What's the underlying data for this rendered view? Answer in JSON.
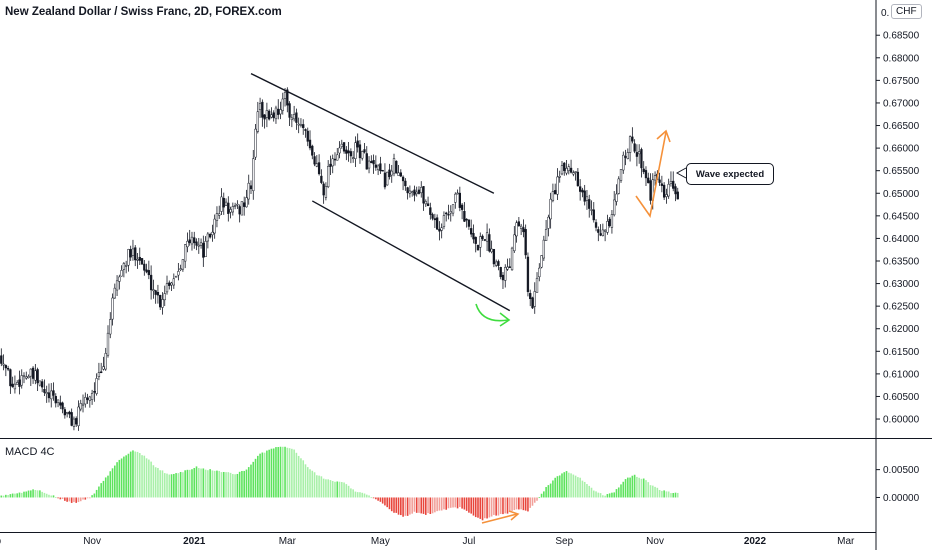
{
  "header": {
    "title": "New Zealand Dollar / Swiss Franc, 2D, FOREX.com",
    "currency": "CHF",
    "top_tick_partial": "0."
  },
  "indicator": {
    "title": "MACD 4C"
  },
  "annotation": {
    "text": "Wave expected"
  },
  "colors": {
    "candle": "#131722",
    "macd_up": "#5de35d",
    "macd_down": "#e8453c",
    "channel": "#131722",
    "green_arrow": "#3fdc3f",
    "orange_arrow": "#f5913a",
    "axis_text": "#131722"
  },
  "chart_data": [
    {
      "type": "candlestick",
      "title": "New Zealand Dollar / Swiss Franc, 2D, FOREX.com",
      "ylim": [
        0.5958,
        0.6928
      ],
      "y_ticks": [
        "0.60000",
        "0.60500",
        "0.61000",
        "0.61500",
        "0.62000",
        "0.62500",
        "0.63000",
        "0.63500",
        "0.64000",
        "0.64500",
        "0.65000",
        "0.65500",
        "0.66000",
        "0.66500",
        "0.67000",
        "0.67500",
        "0.68000",
        "0.68500"
      ],
      "y_tick_values": [
        0.6,
        0.605,
        0.61,
        0.615,
        0.62,
        0.625,
        0.63,
        0.635,
        0.64,
        0.645,
        0.65,
        0.655,
        0.66,
        0.665,
        0.67,
        0.675,
        0.68,
        0.685
      ],
      "x_ticks": [
        "Sep",
        "Nov",
        "2021",
        "Mar",
        "May",
        "Jul",
        "Sep",
        "Nov",
        "2022",
        "Mar"
      ],
      "x_tick_index": [
        -4,
        40,
        85,
        126,
        167,
        206,
        248,
        288,
        332,
        372
      ],
      "n_bars": 300,
      "close_anchors": [
        [
          0,
          0.614
        ],
        [
          5,
          0.607
        ],
        [
          10,
          0.61
        ],
        [
          15,
          0.609
        ],
        [
          20,
          0.605
        ],
        [
          25,
          0.604
        ],
        [
          30,
          0.6
        ],
        [
          33,
          0.5995
        ],
        [
          36,
          0.604
        ],
        [
          40,
          0.606
        ],
        [
          45,
          0.611
        ],
        [
          48,
          0.623
        ],
        [
          52,
          0.632
        ],
        [
          56,
          0.636
        ],
        [
          60,
          0.637
        ],
        [
          63,
          0.633
        ],
        [
          67,
          0.629
        ],
        [
          70,
          0.626
        ],
        [
          73,
          0.63
        ],
        [
          77,
          0.632
        ],
        [
          81,
          0.638
        ],
        [
          85,
          0.64
        ],
        [
          89,
          0.637
        ],
        [
          93,
          0.642
        ],
        [
          97,
          0.648
        ],
        [
          101,
          0.646
        ],
        [
          104,
          0.646
        ],
        [
          107,
          0.648
        ],
        [
          110,
          0.652
        ],
        [
          113,
          0.669
        ],
        [
          117,
          0.667
        ],
        [
          121,
          0.668
        ],
        [
          125,
          0.671
        ],
        [
          129,
          0.666
        ],
        [
          133,
          0.664
        ],
        [
          136,
          0.659
        ],
        [
          139,
          0.656
        ],
        [
          142,
          0.651
        ],
        [
          145,
          0.657
        ],
        [
          149,
          0.66
        ],
        [
          153,
          0.658
        ],
        [
          157,
          0.66
        ],
        [
          161,
          0.657
        ],
        [
          165,
          0.655
        ],
        [
          169,
          0.653
        ],
        [
          173,
          0.656
        ],
        [
          177,
          0.652
        ],
        [
          181,
          0.651
        ],
        [
          185,
          0.65
        ],
        [
          189,
          0.646
        ],
        [
          193,
          0.642
        ],
        [
          197,
          0.646
        ],
        [
          201,
          0.65
        ],
        [
          205,
          0.643
        ],
        [
          209,
          0.638
        ],
        [
          213,
          0.641
        ],
        [
          217,
          0.636
        ],
        [
          221,
          0.632
        ],
        [
          224,
          0.635
        ],
        [
          227,
          0.645
        ],
        [
          230,
          0.643
        ],
        [
          232,
          0.628
        ],
        [
          234,
          0.6245
        ],
        [
          236,
          0.632
        ],
        [
          239,
          0.639
        ],
        [
          242,
          0.648
        ],
        [
          245,
          0.653
        ],
        [
          249,
          0.656
        ],
        [
          253,
          0.655
        ],
        [
          256,
          0.65
        ],
        [
          259,
          0.647
        ],
        [
          262,
          0.644
        ],
        [
          265,
          0.641
        ],
        [
          268,
          0.643
        ],
        [
          271,
          0.649
        ],
        [
          274,
          0.659
        ],
        [
          277,
          0.661
        ],
        [
          280,
          0.659
        ],
        [
          283,
          0.656
        ],
        [
          286,
          0.65
        ],
        [
          289,
          0.654
        ],
        [
          292,
          0.648
        ],
        [
          295,
          0.652
        ],
        [
          298,
          0.649
        ]
      ],
      "channel_upper": [
        [
          0.6765,
          0.65
        ]
      ],
      "channel_lower": [
        [
          0.6483,
          0.624
        ]
      ],
      "annotation": "Wave expected"
    },
    {
      "type": "bar",
      "title": "MACD 4C",
      "ylim": [
        -0.0062,
        0.0105
      ],
      "y_ticks": [
        "0.00500",
        "0.00000"
      ],
      "y_tick_values": [
        0.005,
        0.0
      ],
      "n_bars": 300,
      "value_anchors": [
        [
          0,
          0.0002
        ],
        [
          8,
          0.0008
        ],
        [
          14,
          0.0015
        ],
        [
          20,
          0.0008
        ],
        [
          26,
          -0.0002
        ],
        [
          31,
          -0.001
        ],
        [
          35,
          -0.0007
        ],
        [
          40,
          0.0003
        ],
        [
          46,
          0.0035
        ],
        [
          52,
          0.0068
        ],
        [
          58,
          0.0085
        ],
        [
          63,
          0.0075
        ],
        [
          68,
          0.0055
        ],
        [
          74,
          0.004
        ],
        [
          80,
          0.0046
        ],
        [
          86,
          0.0055
        ],
        [
          91,
          0.005
        ],
        [
          97,
          0.0047
        ],
        [
          103,
          0.0042
        ],
        [
          108,
          0.005
        ],
        [
          113,
          0.0075
        ],
        [
          119,
          0.0088
        ],
        [
          124,
          0.0092
        ],
        [
          129,
          0.0086
        ],
        [
          134,
          0.006
        ],
        [
          139,
          0.004
        ],
        [
          145,
          0.003
        ],
        [
          151,
          0.0026
        ],
        [
          156,
          0.0012
        ],
        [
          162,
          0.0003
        ],
        [
          167,
          -0.0008
        ],
        [
          172,
          -0.0025
        ],
        [
          177,
          -0.0035
        ],
        [
          182,
          -0.0027
        ],
        [
          187,
          -0.003
        ],
        [
          192,
          -0.0026
        ],
        [
          197,
          -0.002
        ],
        [
          202,
          -0.0018
        ],
        [
          207,
          -0.003
        ],
        [
          212,
          -0.004
        ],
        [
          217,
          -0.0032
        ],
        [
          222,
          -0.003
        ],
        [
          227,
          -0.002
        ],
        [
          232,
          -0.0025
        ],
        [
          236,
          -0.0005
        ],
        [
          240,
          0.0018
        ],
        [
          245,
          0.0038
        ],
        [
          249,
          0.0048
        ],
        [
          253,
          0.004
        ],
        [
          258,
          0.0025
        ],
        [
          262,
          0.001
        ],
        [
          266,
          0.0003
        ],
        [
          270,
          0.001
        ],
        [
          275,
          0.0033
        ],
        [
          279,
          0.004
        ],
        [
          283,
          0.0033
        ],
        [
          287,
          0.002
        ],
        [
          291,
          0.0013
        ],
        [
          295,
          0.0009
        ],
        [
          298,
          0.0007
        ]
      ]
    }
  ]
}
